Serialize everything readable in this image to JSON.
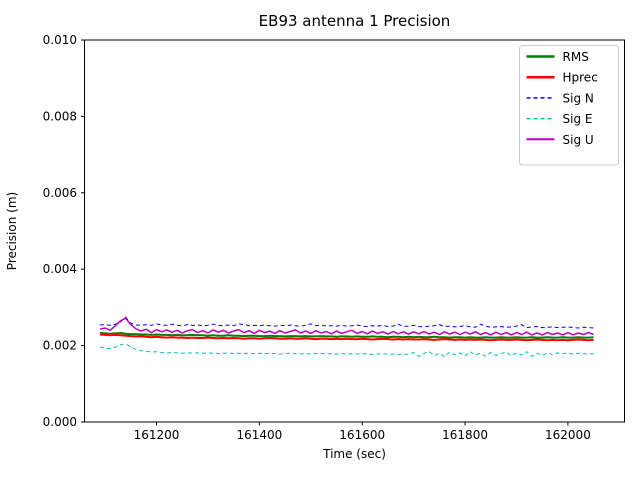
{
  "chart_data": {
    "type": "line",
    "title": "EB93 antenna 1 Precision",
    "xlabel": "Time (sec)",
    "ylabel": "Precision (m)",
    "xlim": [
      161060,
      162110
    ],
    "ylim": [
      0.0,
      0.01
    ],
    "xticks": [
      161200,
      161400,
      161600,
      161800,
      162000
    ],
    "xtick_labels": [
      "161200",
      "161400",
      "161600",
      "161800",
      "162000"
    ],
    "yticks": [
      0.0,
      0.002,
      0.004,
      0.006,
      0.008,
      0.01
    ],
    "ytick_labels": [
      "0.000",
      "0.002",
      "0.004",
      "0.006",
      "0.008",
      "0.010"
    ],
    "grid": false,
    "legend_position": "upper right",
    "legend_labels": [
      "RMS",
      "Hprec",
      "Sig N",
      "Sig E",
      "Sig U"
    ],
    "x_start": 161090,
    "x_step": 10,
    "axis_color": "#000000",
    "background_color": "#ffffff",
    "legend_edge_color": "#cccccc",
    "series": [
      {
        "name": "RMS",
        "color": "#008000",
        "linestyle": "solid",
        "linewidth": 2,
        "values": [
          0.00233,
          0.00232,
          0.00231,
          0.00232,
          0.00233,
          0.00231,
          0.0023,
          0.0023,
          0.00229,
          0.00229,
          0.00228,
          0.00229,
          0.00228,
          0.00228,
          0.00227,
          0.00228,
          0.00227,
          0.00227,
          0.00228,
          0.00227,
          0.00227,
          0.00226,
          0.00227,
          0.00226,
          0.00226,
          0.00227,
          0.00226,
          0.00226,
          0.00225,
          0.00226,
          0.00226,
          0.00225,
          0.00225,
          0.00226,
          0.00225,
          0.00225,
          0.00224,
          0.00225,
          0.00225,
          0.00224,
          0.00225,
          0.00224,
          0.00224,
          0.00225,
          0.00224,
          0.00224,
          0.00223,
          0.00224,
          0.00224,
          0.00223,
          0.00224,
          0.00223,
          0.00223,
          0.00224,
          0.00223,
          0.00223,
          0.00222,
          0.00223,
          0.00223,
          0.00222,
          0.00223,
          0.00222,
          0.00223,
          0.00222,
          0.00222,
          0.00223,
          0.00222,
          0.00222,
          0.00221,
          0.00222,
          0.00222,
          0.00221,
          0.00222,
          0.00221,
          0.00221,
          0.00222,
          0.00221,
          0.00221,
          0.00222,
          0.00221,
          0.00221,
          0.00222,
          0.00221,
          0.00221,
          0.00222,
          0.00221,
          0.00221,
          0.00222,
          0.00221,
          0.00221,
          0.00222,
          0.00221,
          0.00221,
          0.00222,
          0.00221,
          0.00221,
          0.00222
        ]
      },
      {
        "name": "Hprec",
        "color": "#ff0000",
        "linestyle": "solid",
        "linewidth": 2,
        "values": [
          0.00229,
          0.00228,
          0.00227,
          0.00228,
          0.00227,
          0.00226,
          0.00225,
          0.00224,
          0.00224,
          0.00223,
          0.00222,
          0.00223,
          0.00222,
          0.00221,
          0.00222,
          0.00221,
          0.00221,
          0.0022,
          0.00221,
          0.0022,
          0.0022,
          0.00221,
          0.0022,
          0.00219,
          0.0022,
          0.00219,
          0.0022,
          0.00219,
          0.00218,
          0.00219,
          0.00219,
          0.00218,
          0.00219,
          0.0022,
          0.00219,
          0.00218,
          0.00218,
          0.00219,
          0.00218,
          0.00218,
          0.00219,
          0.00218,
          0.00217,
          0.00218,
          0.00218,
          0.00217,
          0.00218,
          0.00217,
          0.00218,
          0.00217,
          0.00217,
          0.00218,
          0.00217,
          0.00216,
          0.00217,
          0.00218,
          0.00217,
          0.00216,
          0.00217,
          0.00216,
          0.00217,
          0.00216,
          0.00216,
          0.00217,
          0.00216,
          0.00215,
          0.00216,
          0.00217,
          0.00216,
          0.00215,
          0.00216,
          0.00215,
          0.00216,
          0.00215,
          0.00216,
          0.00215,
          0.00214,
          0.00215,
          0.00216,
          0.00215,
          0.00215,
          0.00216,
          0.00215,
          0.00214,
          0.00215,
          0.00216,
          0.00215,
          0.00214,
          0.00215,
          0.00214,
          0.00215,
          0.00214,
          0.00215,
          0.00216,
          0.00215,
          0.00214,
          0.00215
        ]
      },
      {
        "name": "Sig N",
        "color": "#0000ff",
        "linestyle": "dashed",
        "linewidth": 1,
        "values": [
          0.00254,
          0.00255,
          0.00253,
          0.00256,
          0.00262,
          0.00275,
          0.00258,
          0.00254,
          0.00253,
          0.00255,
          0.00253,
          0.00257,
          0.00254,
          0.00253,
          0.00256,
          0.00253,
          0.00252,
          0.00255,
          0.00253,
          0.00254,
          0.00252,
          0.00253,
          0.00256,
          0.00253,
          0.00252,
          0.00254,
          0.00252,
          0.00257,
          0.00255,
          0.00252,
          0.00253,
          0.00252,
          0.00254,
          0.00252,
          0.00251,
          0.00253,
          0.00252,
          0.00254,
          0.00252,
          0.00251,
          0.00253,
          0.00257,
          0.00252,
          0.00254,
          0.00251,
          0.00252,
          0.00251,
          0.00253,
          0.00251,
          0.00252,
          0.00254,
          0.00251,
          0.0025,
          0.00252,
          0.00251,
          0.00253,
          0.0025,
          0.00251,
          0.00256,
          0.0025,
          0.00251,
          0.00253,
          0.0025,
          0.00249,
          0.00251,
          0.00252,
          0.00255,
          0.0025,
          0.00251,
          0.00249,
          0.0025,
          0.00252,
          0.00249,
          0.00248,
          0.00256,
          0.00251,
          0.00248,
          0.00249,
          0.0025,
          0.00248,
          0.00249,
          0.00251,
          0.00255,
          0.00247,
          0.00249,
          0.0025,
          0.00247,
          0.00248,
          0.00249,
          0.00247,
          0.00248,
          0.00249,
          0.00247,
          0.00246,
          0.00248,
          0.00247,
          0.00246
        ]
      },
      {
        "name": "Sig E",
        "color": "#00bfbf",
        "linestyle": "dashed",
        "linewidth": 1,
        "values": [
          0.00196,
          0.00194,
          0.00192,
          0.00196,
          0.00202,
          0.00205,
          0.00196,
          0.0019,
          0.00187,
          0.00185,
          0.00183,
          0.00184,
          0.00182,
          0.00181,
          0.00182,
          0.00181,
          0.0018,
          0.00181,
          0.0018,
          0.00181,
          0.0018,
          0.00181,
          0.0018,
          0.00179,
          0.0018,
          0.00181,
          0.00179,
          0.0018,
          0.00179,
          0.0018,
          0.00179,
          0.0018,
          0.00179,
          0.0018,
          0.00179,
          0.00178,
          0.00179,
          0.0018,
          0.00179,
          0.00178,
          0.00179,
          0.00178,
          0.00179,
          0.0018,
          0.00178,
          0.00179,
          0.00178,
          0.00179,
          0.00178,
          0.00179,
          0.00178,
          0.00179,
          0.00178,
          0.00177,
          0.00178,
          0.00179,
          0.00177,
          0.00178,
          0.00177,
          0.00178,
          0.00177,
          0.00182,
          0.00172,
          0.00179,
          0.00185,
          0.00174,
          0.0018,
          0.00171,
          0.00183,
          0.00176,
          0.00181,
          0.00173,
          0.00184,
          0.00175,
          0.0018,
          0.00172,
          0.00182,
          0.00174,
          0.00179,
          0.00183,
          0.00173,
          0.00181,
          0.00175,
          0.00184,
          0.00172,
          0.0018,
          0.00174,
          0.00182,
          0.00176,
          0.00181,
          0.00179,
          0.00181,
          0.00178,
          0.0018,
          0.00179,
          0.00178,
          0.00179
        ]
      },
      {
        "name": "Sig U",
        "color": "#bf00bf",
        "linestyle": "solid",
        "linewidth": 1.5,
        "values": [
          0.00243,
          0.00246,
          0.0024,
          0.00252,
          0.00265,
          0.00272,
          0.00255,
          0.00244,
          0.00238,
          0.00243,
          0.00234,
          0.00242,
          0.00236,
          0.00241,
          0.00235,
          0.0024,
          0.00233,
          0.00239,
          0.00242,
          0.00234,
          0.00239,
          0.00233,
          0.00241,
          0.00235,
          0.0024,
          0.00233,
          0.00238,
          0.00242,
          0.00234,
          0.00239,
          0.00232,
          0.0024,
          0.00234,
          0.00238,
          0.00232,
          0.00239,
          0.00233,
          0.00237,
          0.00241,
          0.00233,
          0.00238,
          0.00232,
          0.00239,
          0.00233,
          0.00237,
          0.00231,
          0.00238,
          0.00232,
          0.00236,
          0.0024,
          0.00232,
          0.00237,
          0.00231,
          0.00238,
          0.00232,
          0.00236,
          0.0023,
          0.00237,
          0.00231,
          0.00236,
          0.0023,
          0.00236,
          0.00231,
          0.00237,
          0.0023,
          0.00235,
          0.00229,
          0.00236,
          0.0023,
          0.00235,
          0.00229,
          0.00235,
          0.0023,
          0.00236,
          0.00229,
          0.00234,
          0.00228,
          0.00235,
          0.00229,
          0.00234,
          0.00228,
          0.00234,
          0.00229,
          0.00235,
          0.00228,
          0.00233,
          0.00228,
          0.00234,
          0.00229,
          0.00233,
          0.00228,
          0.00234,
          0.00228,
          0.00233,
          0.00229,
          0.00234,
          0.00229
        ]
      }
    ]
  }
}
